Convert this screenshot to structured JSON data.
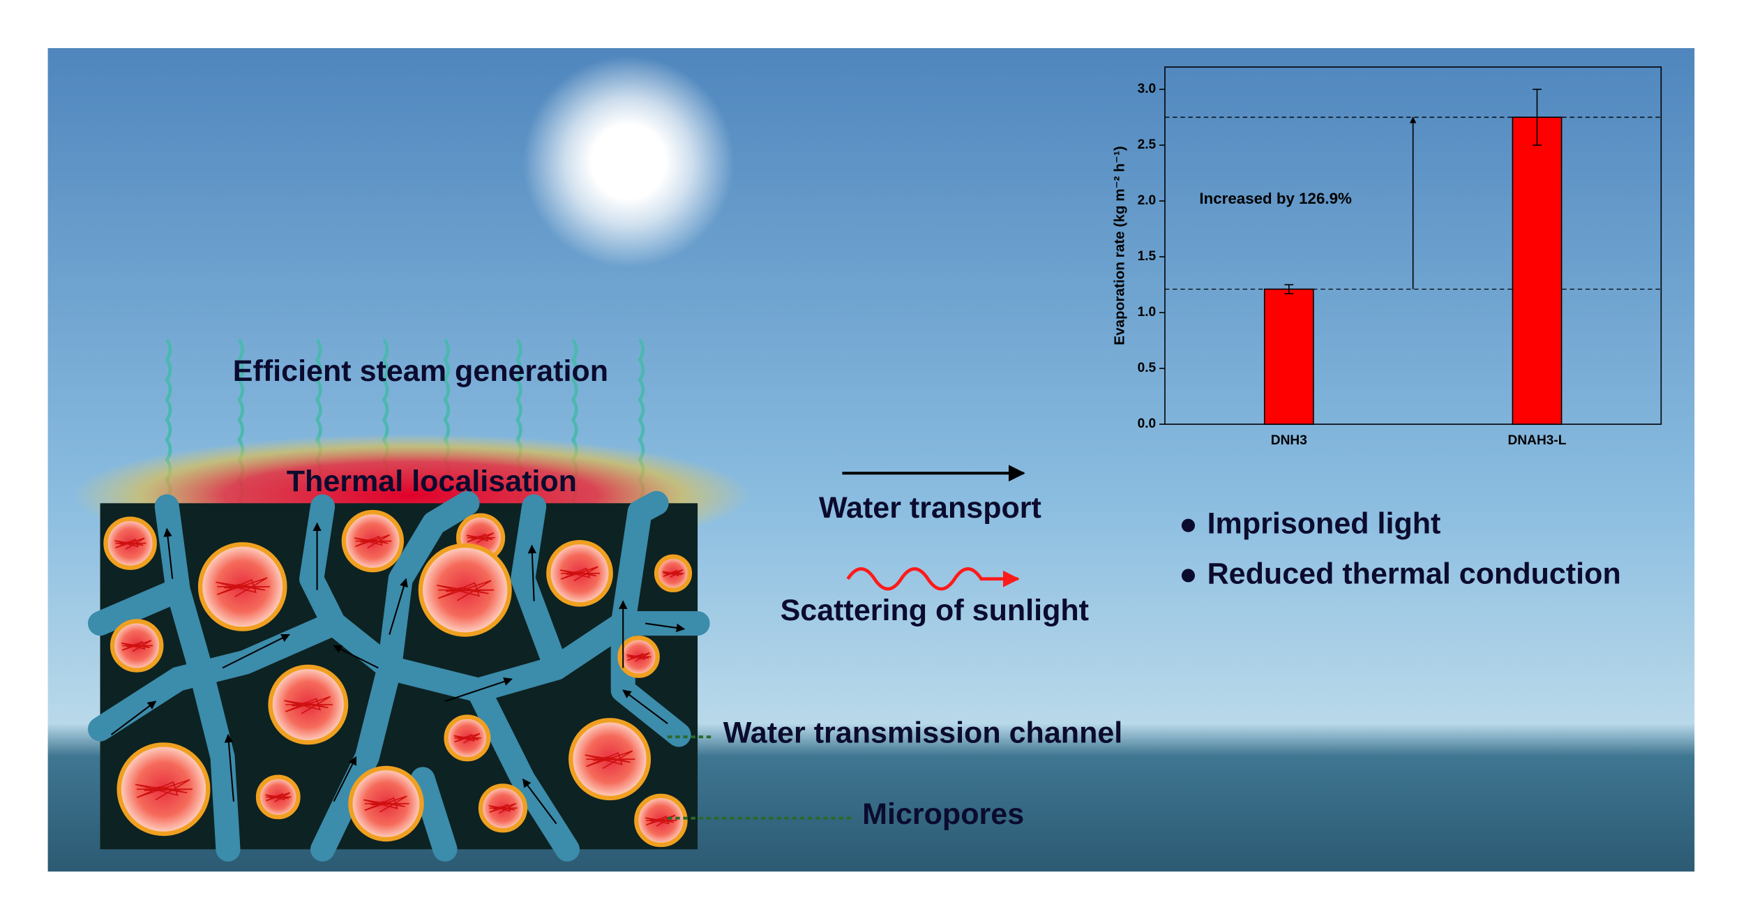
{
  "labels": {
    "steam": "Efficient steam generation",
    "thermal": "Thermal localisation",
    "channel": "Water transmission channel",
    "micropores": "Micropores"
  },
  "legend": [
    "Water transport",
    "Scattering of sunlight"
  ],
  "highlights": [
    "Imprisoned light",
    "Reduced thermal conduction"
  ],
  "chart_data": {
    "type": "bar",
    "ylabel": "Evaporation rate (kg m⁻² h⁻¹)",
    "categories": [
      "DNH3",
      "DNAH3-L"
    ],
    "values": [
      1.21,
      2.75
    ],
    "errors": [
      0.04,
      0.25
    ],
    "color": "#ff0000",
    "annotation": "Increased by 126.9%",
    "ylim": [
      0,
      3.2
    ],
    "yticks": [
      {
        "value": 0,
        "label": "0.0"
      },
      0.5,
      {
        "value": 1,
        "label": "1.0"
      },
      1.5,
      {
        "value": 2,
        "label": "2.0"
      },
      2.5,
      {
        "value": 3,
        "label": "3.0"
      }
    ]
  }
}
